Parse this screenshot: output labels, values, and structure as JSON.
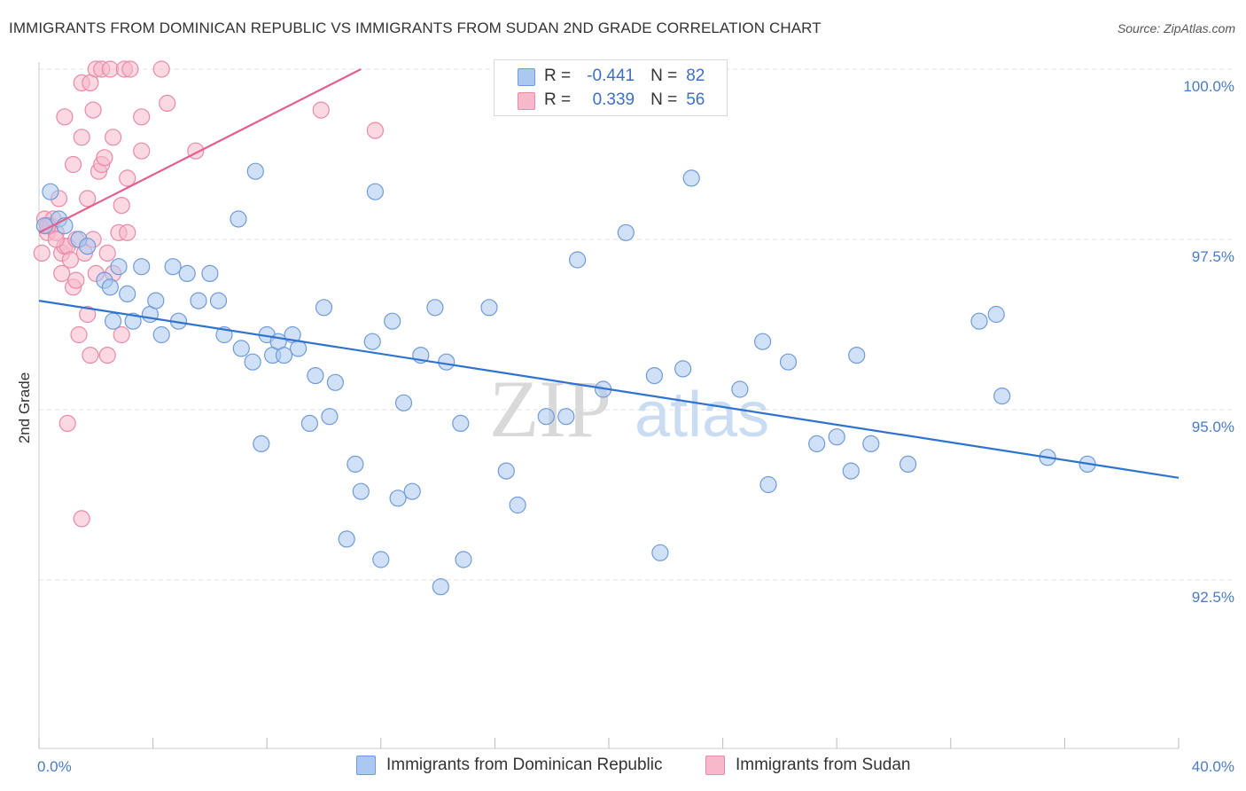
{
  "title": "IMMIGRANTS FROM DOMINICAN REPUBLIC VS IMMIGRANTS FROM SUDAN 2ND GRADE CORRELATION CHART",
  "source": "Source: ZipAtlas.com",
  "watermark": {
    "zip": "ZIP",
    "atlas": "atlas"
  },
  "legend": {
    "rows": [
      {
        "r_label": "R =",
        "r_value": "-0.441",
        "n_label": "N =",
        "n_value": "82"
      },
      {
        "r_label": "R =",
        "r_value": "0.339",
        "n_label": "N =",
        "n_value": "56"
      }
    ]
  },
  "bottom_legend": [
    "Immigrants from Dominican Republic",
    "Immigrants from Sudan"
  ],
  "colors": {
    "blue_fill": "#aac8f0",
    "blue_stroke": "#6f9bd8",
    "blue_line": "#2f73d0",
    "pink_fill": "#f7b8cb",
    "pink_stroke": "#e88aa8",
    "pink_line": "#e0608e",
    "tick_text": "#4a7bc8",
    "grid": "#e2e2e2"
  },
  "chart_data": {
    "type": "scatter",
    "title": "IMMIGRANTS FROM DOMINICAN REPUBLIC VS IMMIGRANTS FROM SUDAN 2ND GRADE CORRELATION CHART",
    "xlabel": "",
    "ylabel": "2nd Grade",
    "xlim": [
      0,
      40
    ],
    "ylim": [
      90.0,
      100.25
    ],
    "x_tick_labels": [
      "0.0%",
      "40.0%"
    ],
    "y_ticks": [
      92.5,
      95.0,
      97.5,
      100.0
    ],
    "y_tick_labels": [
      "92.5%",
      "95.0%",
      "97.5%",
      "100.0%"
    ],
    "grid": "horizontal dashed",
    "series": [
      {
        "name": "Immigrants from Dominican Republic",
        "color": "#aac8f0",
        "trend": {
          "x": [
            0,
            40
          ],
          "y": [
            96.6,
            94.0
          ]
        },
        "points": [
          [
            0.4,
            98.2
          ],
          [
            0.7,
            97.8
          ],
          [
            0.9,
            97.7
          ],
          [
            1.4,
            97.5
          ],
          [
            1.7,
            97.4
          ],
          [
            2.3,
            96.9
          ],
          [
            2.5,
            96.8
          ],
          [
            2.6,
            96.3
          ],
          [
            2.8,
            97.1
          ],
          [
            3.1,
            96.7
          ],
          [
            3.3,
            96.3
          ],
          [
            3.6,
            97.1
          ],
          [
            3.9,
            96.4
          ],
          [
            4.1,
            96.6
          ],
          [
            4.3,
            96.1
          ],
          [
            4.7,
            97.1
          ],
          [
            4.9,
            96.3
          ],
          [
            5.2,
            97.0
          ],
          [
            5.6,
            96.6
          ],
          [
            6.0,
            97.0
          ],
          [
            6.3,
            96.6
          ],
          [
            6.5,
            96.1
          ],
          [
            7.0,
            97.8
          ],
          [
            7.1,
            95.9
          ],
          [
            7.5,
            95.7
          ],
          [
            7.6,
            98.5
          ],
          [
            7.8,
            94.5
          ],
          [
            8.0,
            96.1
          ],
          [
            8.2,
            95.8
          ],
          [
            8.4,
            96.0
          ],
          [
            8.6,
            95.8
          ],
          [
            8.9,
            96.1
          ],
          [
            9.1,
            95.9
          ],
          [
            9.5,
            94.8
          ],
          [
            9.7,
            95.5
          ],
          [
            10.0,
            96.5
          ],
          [
            10.2,
            94.9
          ],
          [
            10.4,
            95.4
          ],
          [
            10.8,
            93.1
          ],
          [
            11.1,
            94.2
          ],
          [
            11.3,
            93.8
          ],
          [
            11.7,
            96.0
          ],
          [
            11.8,
            98.2
          ],
          [
            12.0,
            92.8
          ],
          [
            12.4,
            96.3
          ],
          [
            12.6,
            93.7
          ],
          [
            12.8,
            95.1
          ],
          [
            13.1,
            93.8
          ],
          [
            13.4,
            95.8
          ],
          [
            13.9,
            96.5
          ],
          [
            14.1,
            92.4
          ],
          [
            14.3,
            95.7
          ],
          [
            14.8,
            94.8
          ],
          [
            14.9,
            92.8
          ],
          [
            15.8,
            96.5
          ],
          [
            16.4,
            94.1
          ],
          [
            16.8,
            93.6
          ],
          [
            17.8,
            94.9
          ],
          [
            18.5,
            94.9
          ],
          [
            18.9,
            97.2
          ],
          [
            19.8,
            95.3
          ],
          [
            20.6,
            97.6
          ],
          [
            21.8,
            92.9
          ],
          [
            21.6,
            95.5
          ],
          [
            22.6,
            95.6
          ],
          [
            22.9,
            98.4
          ],
          [
            24.6,
            95.3
          ],
          [
            25.4,
            96.0
          ],
          [
            25.6,
            93.9
          ],
          [
            26.3,
            95.7
          ],
          [
            27.3,
            94.5
          ],
          [
            28.0,
            94.6
          ],
          [
            28.5,
            94.1
          ],
          [
            28.7,
            95.8
          ],
          [
            29.2,
            94.5
          ],
          [
            30.5,
            94.2
          ],
          [
            33.0,
            96.3
          ],
          [
            33.6,
            96.4
          ],
          [
            33.8,
            95.2
          ],
          [
            35.4,
            94.3
          ],
          [
            36.8,
            94.2
          ],
          [
            0.2,
            97.7
          ]
        ]
      },
      {
        "name": "Immigrants from Sudan",
        "color": "#f7b8cb",
        "trend": {
          "x": [
            0,
            11.3
          ],
          "y": [
            97.6,
            100.0
          ]
        },
        "points": [
          [
            0.1,
            97.3
          ],
          [
            0.2,
            97.8
          ],
          [
            0.3,
            97.6
          ],
          [
            0.4,
            97.7
          ],
          [
            0.5,
            97.8
          ],
          [
            0.6,
            97.6
          ],
          [
            0.7,
            98.1
          ],
          [
            0.8,
            97.3
          ],
          [
            0.8,
            97.0
          ],
          [
            0.9,
            97.4
          ],
          [
            0.9,
            99.3
          ],
          [
            1.0,
            97.4
          ],
          [
            1.1,
            97.2
          ],
          [
            1.2,
            96.8
          ],
          [
            1.2,
            98.6
          ],
          [
            1.3,
            96.9
          ],
          [
            1.3,
            97.5
          ],
          [
            1.4,
            96.1
          ],
          [
            1.5,
            99.8
          ],
          [
            1.5,
            99.0
          ],
          [
            1.6,
            97.3
          ],
          [
            1.7,
            98.1
          ],
          [
            1.7,
            96.4
          ],
          [
            1.8,
            99.8
          ],
          [
            1.8,
            95.8
          ],
          [
            1.9,
            97.5
          ],
          [
            1.9,
            99.4
          ],
          [
            2.0,
            97.0
          ],
          [
            2.0,
            100.0
          ],
          [
            2.1,
            98.5
          ],
          [
            2.2,
            100.0
          ],
          [
            2.2,
            98.6
          ],
          [
            2.3,
            98.7
          ],
          [
            2.4,
            97.3
          ],
          [
            2.4,
            95.8
          ],
          [
            2.5,
            100.0
          ],
          [
            2.6,
            97.0
          ],
          [
            2.6,
            99.0
          ],
          [
            2.8,
            97.6
          ],
          [
            2.9,
            96.1
          ],
          [
            2.9,
            98.0
          ],
          [
            3.0,
            100.0
          ],
          [
            3.1,
            97.6
          ],
          [
            3.1,
            98.4
          ],
          [
            3.2,
            100.0
          ],
          [
            3.6,
            98.8
          ],
          [
            3.6,
            99.3
          ],
          [
            4.3,
            100.0
          ],
          [
            4.5,
            99.5
          ],
          [
            5.5,
            98.8
          ],
          [
            9.9,
            99.4
          ],
          [
            11.8,
            99.1
          ],
          [
            1.0,
            94.8
          ],
          [
            1.5,
            93.4
          ],
          [
            0.3,
            97.7
          ],
          [
            0.6,
            97.5
          ]
        ]
      }
    ]
  }
}
